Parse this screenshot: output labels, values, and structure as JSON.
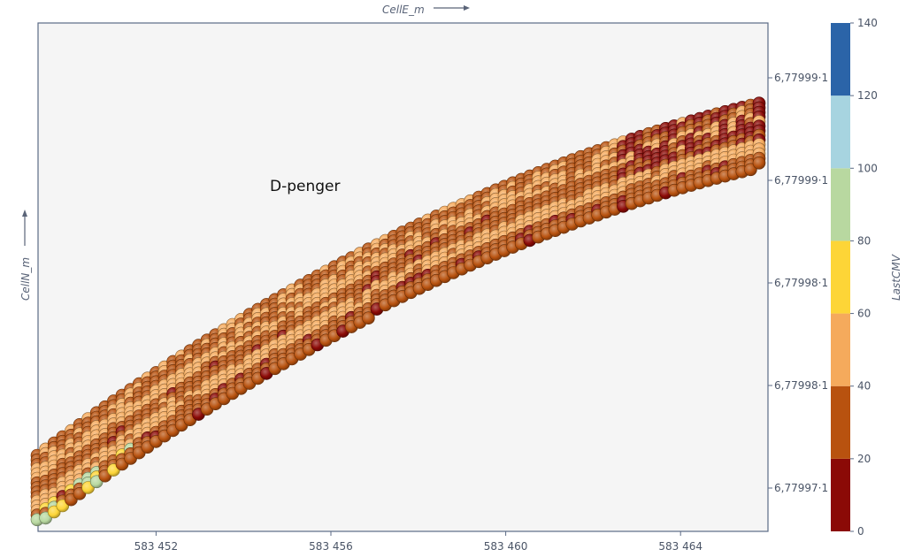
{
  "chart_data": {
    "type": "scatter",
    "xlabel": "CellE_m",
    "ylabel": "CellN_m",
    "x_ticks": [
      "583 452",
      "583 456",
      "583 460",
      "583 464"
    ],
    "x_tick_values": [
      583452,
      583456,
      583460,
      583464
    ],
    "xlim": [
      583449.3,
      583466.0
    ],
    "y_ticks": [
      "6,77999·1",
      "6,77999·1",
      "6,77998·1",
      "6,77998·1",
      "6,77997·1"
    ],
    "annotation": "D-penger",
    "colorbar": {
      "label": "LastCMV",
      "ticks": [
        "0",
        "20",
        "40",
        "60",
        "80",
        "100",
        "120",
        "140"
      ],
      "bands": [
        {
          "from": 0,
          "to": 20,
          "color": "#8b0a06"
        },
        {
          "from": 20,
          "to": 40,
          "color": "#b8520f"
        },
        {
          "from": 40,
          "to": 60,
          "color": "#f5aa5c"
        },
        {
          "from": 60,
          "to": 80,
          "color": "#fdd537"
        },
        {
          "from": 80,
          "to": 100,
          "color": "#b8d8a0"
        },
        {
          "from": 100,
          "to": 120,
          "color": "#a7d4e0"
        },
        {
          "from": 120,
          "to": 140,
          "color": "#2b64a8"
        }
      ]
    },
    "series": [
      {
        "description_of_values": "LastCMV per cell; cells arranged in a curved swath of adjacent lanes",
        "lanes": 5,
        "lane_dominant_values": [
          35,
          45,
          30,
          48,
          28
        ],
        "lowest_cmv_region_x_range": [
          583462.5,
          583466.0
        ],
        "lowest_cmv_region_value": 10,
        "highest_cmv_region_x_range": [
          583449.3,
          583451.5
        ],
        "highest_cmv_region_values": [
          70,
          85
        ]
      }
    ]
  }
}
